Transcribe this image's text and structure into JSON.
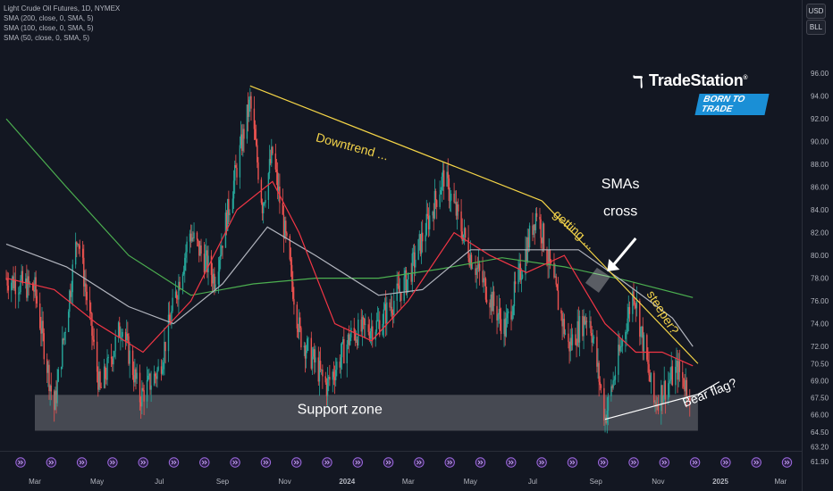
{
  "legend": {
    "symbol_line": "Light Crude Oil Futures, 1D, NYMEX",
    "sma_lines": [
      "SMA (200, close, 0, SMA, 5)",
      "SMA (100, close, 0, SMA, 5)",
      "SMA (50, close, 0, SMA, 5)"
    ]
  },
  "units": [
    "USD",
    "BLL"
  ],
  "logo": {
    "name": "TradeStation",
    "tagline": "BORN TO TRADE"
  },
  "chart_data": {
    "type": "candlestick",
    "y_ticks": [
      "96.00",
      "94.00",
      "92.00",
      "90.00",
      "88.00",
      "86.00",
      "84.00",
      "82.00",
      "80.00",
      "78.00",
      "76.00",
      "74.00",
      "72.00",
      "70.50",
      "69.00",
      "67.50",
      "66.00",
      "64.50",
      "63.20",
      "61.90"
    ],
    "y_tick_values": [
      96,
      94,
      92,
      90,
      88,
      86,
      84,
      82,
      80,
      78,
      76,
      74,
      72,
      70.5,
      69,
      67.5,
      66,
      64.5,
      63.2,
      61.9
    ],
    "x_ticks": [
      {
        "label": "Mar",
        "date": "2023-03-01"
      },
      {
        "label": "May",
        "date": "2023-05-01"
      },
      {
        "label": "Jul",
        "date": "2023-07-01"
      },
      {
        "label": "Sep",
        "date": "2023-09-01"
      },
      {
        "label": "Nov",
        "date": "2023-11-01"
      },
      {
        "label": "2024",
        "date": "2024-01-01"
      },
      {
        "label": "Mar",
        "date": "2024-03-01"
      },
      {
        "label": "May",
        "date": "2024-05-01"
      },
      {
        "label": "Jul",
        "date": "2024-07-01"
      },
      {
        "label": "Sep",
        "date": "2024-09-01"
      },
      {
        "label": "Nov",
        "date": "2024-11-01"
      },
      {
        "label": "2025",
        "date": "2025-01-01"
      },
      {
        "label": "Mar",
        "date": "2025-03-01"
      }
    ],
    "price_path": [
      {
        "date": "2023-02-01",
        "price": 78.0
      },
      {
        "date": "2023-03-01",
        "price": 77.0
      },
      {
        "date": "2023-03-20",
        "price": 66.5
      },
      {
        "date": "2023-04-12",
        "price": 82.0
      },
      {
        "date": "2023-05-04",
        "price": 68.0
      },
      {
        "date": "2023-05-25",
        "price": 74.0
      },
      {
        "date": "2023-06-12",
        "price": 67.5
      },
      {
        "date": "2023-07-01",
        "price": 70.0
      },
      {
        "date": "2023-07-31",
        "price": 82.0
      },
      {
        "date": "2023-08-24",
        "price": 78.0
      },
      {
        "date": "2023-09-28",
        "price": 93.5
      },
      {
        "date": "2023-10-10",
        "price": 84.5
      },
      {
        "date": "2023-10-20",
        "price": 89.0
      },
      {
        "date": "2023-11-16",
        "price": 73.0
      },
      {
        "date": "2023-12-12",
        "price": 68.5
      },
      {
        "date": "2024-01-05",
        "price": 73.0
      },
      {
        "date": "2024-02-01",
        "price": 74.0
      },
      {
        "date": "2024-03-01",
        "price": 78.0
      },
      {
        "date": "2024-04-05",
        "price": 87.0
      },
      {
        "date": "2024-05-01",
        "price": 80.0
      },
      {
        "date": "2024-06-04",
        "price": 73.5
      },
      {
        "date": "2024-07-05",
        "price": 84.0
      },
      {
        "date": "2024-08-05",
        "price": 72.0
      },
      {
        "date": "2024-08-25",
        "price": 75.0
      },
      {
        "date": "2024-09-10",
        "price": 65.75
      },
      {
        "date": "2024-10-08",
        "price": 77.0
      },
      {
        "date": "2024-10-28",
        "price": 67.0
      },
      {
        "date": "2024-11-20",
        "price": 70.0
      },
      {
        "date": "2024-12-02",
        "price": 68.0
      }
    ],
    "sma200_path": [
      {
        "date": "2023-02-01",
        "price": 92.0
      },
      {
        "date": "2023-04-01",
        "price": 86.0
      },
      {
        "date": "2023-06-01",
        "price": 80.0
      },
      {
        "date": "2023-08-01",
        "price": 76.5
      },
      {
        "date": "2023-10-01",
        "price": 77.5
      },
      {
        "date": "2023-12-01",
        "price": 78.0
      },
      {
        "date": "2024-02-01",
        "price": 78.0
      },
      {
        "date": "2024-04-01",
        "price": 78.8
      },
      {
        "date": "2024-06-01",
        "price": 79.8
      },
      {
        "date": "2024-08-01",
        "price": 79.0
      },
      {
        "date": "2024-10-01",
        "price": 77.8
      },
      {
        "date": "2024-12-05",
        "price": 76.3
      }
    ],
    "sma100_path": [
      {
        "date": "2023-02-01",
        "price": 81.0
      },
      {
        "date": "2023-04-01",
        "price": 79.0
      },
      {
        "date": "2023-06-01",
        "price": 75.5
      },
      {
        "date": "2023-07-15",
        "price": 74.0
      },
      {
        "date": "2023-09-01",
        "price": 77.5
      },
      {
        "date": "2023-10-15",
        "price": 82.5
      },
      {
        "date": "2023-12-01",
        "price": 80.0
      },
      {
        "date": "2024-02-01",
        "price": 76.5
      },
      {
        "date": "2024-03-15",
        "price": 77.0
      },
      {
        "date": "2024-05-01",
        "price": 80.5
      },
      {
        "date": "2024-07-01",
        "price": 80.5
      },
      {
        "date": "2024-08-15",
        "price": 80.5
      },
      {
        "date": "2024-10-01",
        "price": 77.5
      },
      {
        "date": "2024-11-15",
        "price": 74.5
      },
      {
        "date": "2024-12-05",
        "price": 72.0
      }
    ],
    "sma50_path": [
      {
        "date": "2023-02-01",
        "price": 78.0
      },
      {
        "date": "2023-03-20",
        "price": 77.0
      },
      {
        "date": "2023-05-01",
        "price": 74.0
      },
      {
        "date": "2023-06-15",
        "price": 71.5
      },
      {
        "date": "2023-08-01",
        "price": 76.0
      },
      {
        "date": "2023-09-15",
        "price": 84.0
      },
      {
        "date": "2023-10-20",
        "price": 86.5
      },
      {
        "date": "2023-11-15",
        "price": 82.0
      },
      {
        "date": "2023-12-20",
        "price": 74.0
      },
      {
        "date": "2024-01-25",
        "price": 72.5
      },
      {
        "date": "2024-03-01",
        "price": 76.0
      },
      {
        "date": "2024-04-15",
        "price": 82.0
      },
      {
        "date": "2024-05-20",
        "price": 80.0
      },
      {
        "date": "2024-06-25",
        "price": 78.5
      },
      {
        "date": "2024-08-01",
        "price": 80.0
      },
      {
        "date": "2024-09-10",
        "price": 74.0
      },
      {
        "date": "2024-10-10",
        "price": 71.5
      },
      {
        "date": "2024-11-05",
        "price": 71.5
      },
      {
        "date": "2024-12-05",
        "price": 70.3
      }
    ],
    "support_zone": {
      "date_from": "2023-03-01",
      "date_to": "2024-12-10",
      "price_high": 67.75,
      "price_low": 64.6
    },
    "trendlines": [
      {
        "name": "downtrend",
        "date_from": "2023-09-28",
        "price_from": 94.9,
        "date_to": "2024-07-10",
        "price_to": 84.8
      },
      {
        "name": "steeper",
        "date_from": "2024-07-10",
        "price_from": 84.8,
        "date_to": "2024-12-10",
        "price_to": 70.5
      },
      {
        "name": "bear-flag",
        "date_from": "2024-09-10",
        "price_from": 65.6,
        "date_to": "2024-12-10",
        "price_to": 67.8
      },
      {
        "name": "bear-flag-ext",
        "date_from": "2024-12-10",
        "price_from": 67.8,
        "date_to": "2024-12-31",
        "price_to": 68.9
      }
    ],
    "annotations": [
      {
        "text": "Downtrend ...",
        "date": "2024-01-05",
        "price": 89.2,
        "angle": 15,
        "color": "#f3d34a"
      },
      {
        "text": "getting ...",
        "date": "2024-08-08",
        "price": 82.0,
        "angle": 42,
        "color": "#f3d34a"
      },
      {
        "text": "steeper?",
        "date": "2024-11-02",
        "price": 74.8,
        "angle": 58,
        "color": "#f3d34a"
      },
      {
        "text": "SMAs",
        "date": "2024-09-25",
        "price": 85.9,
        "angle": 0,
        "color": "#ffffff"
      },
      {
        "text": "cross",
        "date": "2024-09-25",
        "price": 83.5,
        "angle": 0,
        "color": "#ffffff"
      },
      {
        "text": "Support zone",
        "date": "2023-12-25",
        "price": 66.1,
        "angle": 0,
        "color": "#ffffff"
      },
      {
        "text": "Bear flag?",
        "date": "2024-12-23",
        "price": 67.6,
        "angle": -22,
        "color": "#ffffff"
      }
    ],
    "cross_marker": {
      "date": "2024-09-02",
      "price": 77.9
    },
    "arrow": {
      "date_from": "2024-10-10",
      "price_from": 81.5,
      "date_to": "2024-09-12",
      "price_to": 78.6
    }
  }
}
